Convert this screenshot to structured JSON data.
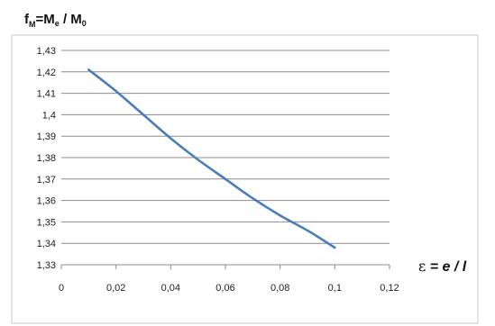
{
  "chart_data": {
    "type": "line",
    "ylabel": {
      "prefix": "f",
      "prefix_sub": "M",
      "middle": "=M",
      "middle_sub": "e",
      "separator": " / M",
      "suffix_sub": "0"
    },
    "xlabel": {
      "symbol": "ε",
      "equals": " = ",
      "numerator": "e",
      "slash": " / ",
      "denominator": "l"
    },
    "xlim": [
      0,
      0.12
    ],
    "ylim": [
      1.33,
      1.43
    ],
    "x_ticks": [
      "0",
      "0,02",
      "0,04",
      "0,06",
      "0,08",
      "0,1",
      "0,12"
    ],
    "y_ticks": [
      "1,33",
      "1,34",
      "1,35",
      "1,36",
      "1,37",
      "1,38",
      "1,39",
      "1,4",
      "1,41",
      "1,42",
      "1,43"
    ],
    "grid": "horizontal",
    "series": [
      {
        "color": "#4a7ebb",
        "x": [
          0.01,
          0.02,
          0.03,
          0.04,
          0.05,
          0.06,
          0.07,
          0.08,
          0.09,
          0.1
        ],
        "y": [
          1.421,
          1.411,
          1.4,
          1.389,
          1.379,
          1.37,
          1.361,
          1.353,
          1.346,
          1.338
        ]
      }
    ]
  }
}
